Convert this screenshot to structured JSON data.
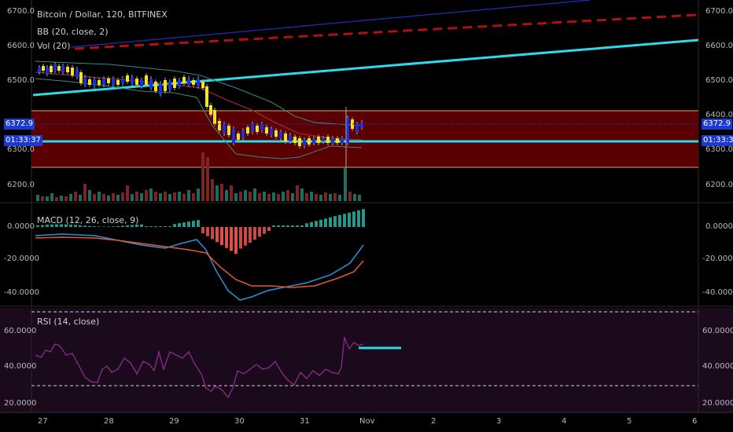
{
  "header": {
    "symbol_line": "Bitcoin / Dollar, 120, BITFINEX",
    "bb_line": "BB (20, close, 2)",
    "vol_line": "Vol (20)"
  },
  "price_ticks": [
    "6700.0",
    "6600.0",
    "6500.0",
    "6400.0",
    "6300.0",
    "6200.0"
  ],
  "price_tags": {
    "last_price": "6372.9",
    "countdown": "01:33:37"
  },
  "macd": {
    "label": "MACD (12, 26, close, 9)",
    "ticks": [
      "0.0000",
      "-20.0000",
      "-40.0000"
    ]
  },
  "rsi": {
    "label": "RSI (14, close)",
    "ticks": [
      "60.0000",
      "40.0000",
      "20.0000"
    ]
  },
  "time_axis": [
    "27",
    "28",
    "29",
    "30",
    "31",
    "Nov",
    "2",
    "3",
    "4",
    "5",
    "6"
  ],
  "colors": {
    "background": "#000000",
    "bull_candle": "#1c2fd9",
    "bear_candle": "#f5e31b",
    "cyan_line": "#2fd9e8",
    "dashed_red": "#b01010",
    "zone_fill": "#5a0000",
    "zone_border": "#e0a070",
    "vol_up": "#1f6b5e",
    "vol_down": "#7a2525",
    "macd_pos": "#2aa89a",
    "macd_neg": "#e0504a",
    "macd_line": "#2f8fd8",
    "signal_line": "#e05a30",
    "rsi_line": "#8a2d8c",
    "rsi_bg": "#1a0a1c"
  }
}
